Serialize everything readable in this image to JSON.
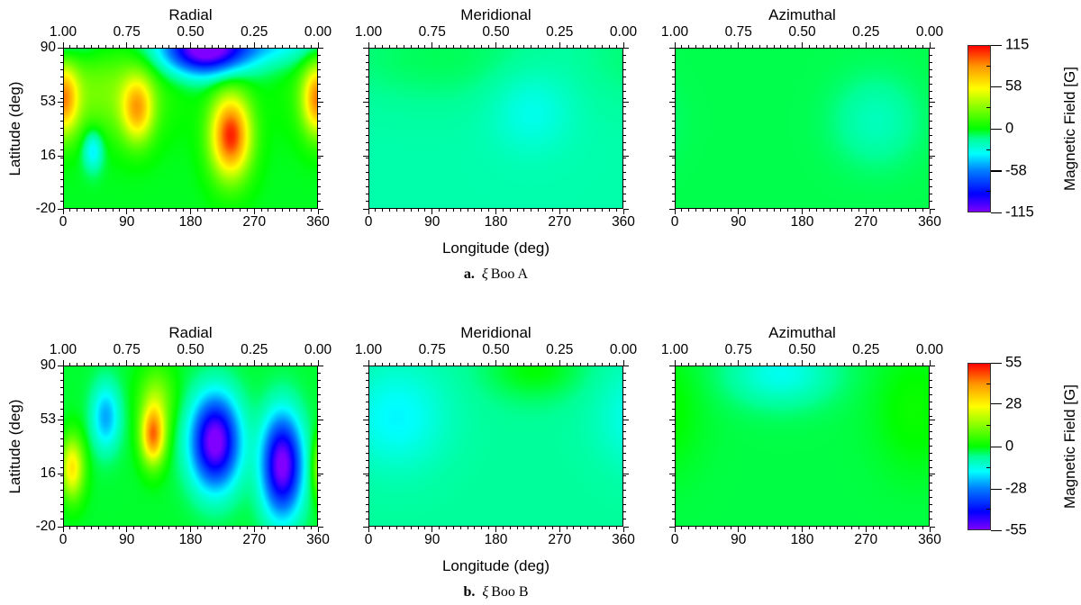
{
  "figure": {
    "xlabel": "Longitude (deg)",
    "ylabel": "Latitude (deg)",
    "colorbar_label": "Magnetic Field [G]"
  },
  "chart_data": [
    {
      "type": "heatmap",
      "caption_label": "a.",
      "caption_symbol": "ξ",
      "caption_star": "Boo A",
      "xlim": [
        0,
        360
      ],
      "ylim": [
        -20,
        90
      ],
      "x_ticks": [
        0,
        90,
        180,
        270,
        360
      ],
      "x_tick_labels": [
        "0",
        "90",
        "180",
        "270",
        "360"
      ],
      "phase_tick_labels": [
        "1.00",
        "0.75",
        "0.50",
        "0.25",
        "0.00"
      ],
      "y_ticks": [
        90,
        53,
        16,
        -20
      ],
      "y_tick_labels": [
        "90",
        "53",
        "16",
        "-20"
      ],
      "color_range": [
        -115,
        115
      ],
      "colorbar_ticks": [
        115,
        58,
        0,
        -58,
        -115
      ],
      "colorbar_tick_labels": [
        "115",
        "58",
        "0",
        "-58",
        "-115"
      ],
      "panels": [
        {
          "title": "Radial",
          "baseline": -3,
          "components": [
            {
              "lon": 105,
              "lat": 48,
              "amp": 70,
              "slon": 16,
              "slat": 16
            },
            {
              "lon": 237,
              "lat": 30,
              "amp": 112,
              "slon": 20,
              "slat": 20
            },
            {
              "lon": 0,
              "lat": 55,
              "amp": 78,
              "slon": 15,
              "slat": 17
            },
            {
              "lon": 60,
              "lat": 60,
              "amp": 28,
              "slon": 60,
              "slat": 22
            },
            {
              "lon": 200,
              "lat": 88,
              "amp": -100,
              "slon": 40,
              "slat": 12
            },
            {
              "lon": 265,
              "lat": 95,
              "amp": -40,
              "slon": 90,
              "slat": 12
            },
            {
              "lon": 42,
              "lat": 20,
              "amp": -38,
              "slon": 10,
              "slat": 10
            }
          ]
        },
        {
          "title": "Meridional",
          "baseline": -18,
          "components": [
            {
              "lon": 230,
              "lat": 48,
              "amp": -14,
              "slon": 40,
              "slat": 20
            },
            {
              "lon": 100,
              "lat": 85,
              "amp": 10,
              "slon": 120,
              "slat": 25
            }
          ]
        },
        {
          "title": "Azimuthal",
          "baseline": -7,
          "components": [
            {
              "lon": 285,
              "lat": 40,
              "amp": -14,
              "slon": 40,
              "slat": 20
            }
          ]
        }
      ]
    },
    {
      "type": "heatmap",
      "caption_label": "b.",
      "caption_symbol": "ξ",
      "caption_star": "Boo B",
      "xlim": [
        0,
        360
      ],
      "ylim": [
        -20,
        90
      ],
      "x_ticks": [
        0,
        90,
        180,
        270,
        360
      ],
      "x_tick_labels": [
        "0",
        "90",
        "180",
        "270",
        "360"
      ],
      "phase_tick_labels": [
        "1.00",
        "0.75",
        "0.50",
        "0.25",
        "0.00"
      ],
      "y_ticks": [
        90,
        53,
        16,
        -20
      ],
      "y_tick_labels": [
        "90",
        "53",
        "16",
        "-20"
      ],
      "color_range": [
        -55,
        55
      ],
      "colorbar_ticks": [
        55,
        28,
        0,
        -28,
        -55
      ],
      "colorbar_tick_labels": [
        "55",
        "28",
        "0",
        "-28",
        "-55"
      ],
      "panels": [
        {
          "title": "Radial",
          "baseline": -2,
          "components": [
            {
              "lon": 12,
              "lat": 20,
              "amp": 32,
              "slon": 12,
              "slat": 15
            },
            {
              "lon": 60,
              "lat": 55,
              "amp": -22,
              "slon": 14,
              "slat": 16
            },
            {
              "lon": 127,
              "lat": 42,
              "amp": 44,
              "slon": 12,
              "slat": 14
            },
            {
              "lon": 132,
              "lat": 68,
              "amp": 15,
              "slon": 18,
              "slat": 16
            },
            {
              "lon": 215,
              "lat": 38,
              "amp": -56,
              "slon": 24,
              "slat": 22
            },
            {
              "lon": 310,
              "lat": 22,
              "amp": -55,
              "slon": 20,
              "slat": 24
            }
          ]
        },
        {
          "title": "Meridional",
          "baseline": -7,
          "components": [
            {
              "lon": 40,
              "lat": 55,
              "amp": -10,
              "slon": 50,
              "slat": 25
            },
            {
              "lon": 235,
              "lat": 88,
              "amp": 7,
              "slon": 50,
              "slat": 15
            }
          ]
        },
        {
          "title": "Azimuthal",
          "baseline": -3,
          "components": [
            {
              "lon": 150,
              "lat": 85,
              "amp": -12,
              "slon": 50,
              "slat": 15
            },
            {
              "lon": 340,
              "lat": 60,
              "amp": 4,
              "slon": 40,
              "slat": 30
            }
          ]
        }
      ]
    }
  ]
}
